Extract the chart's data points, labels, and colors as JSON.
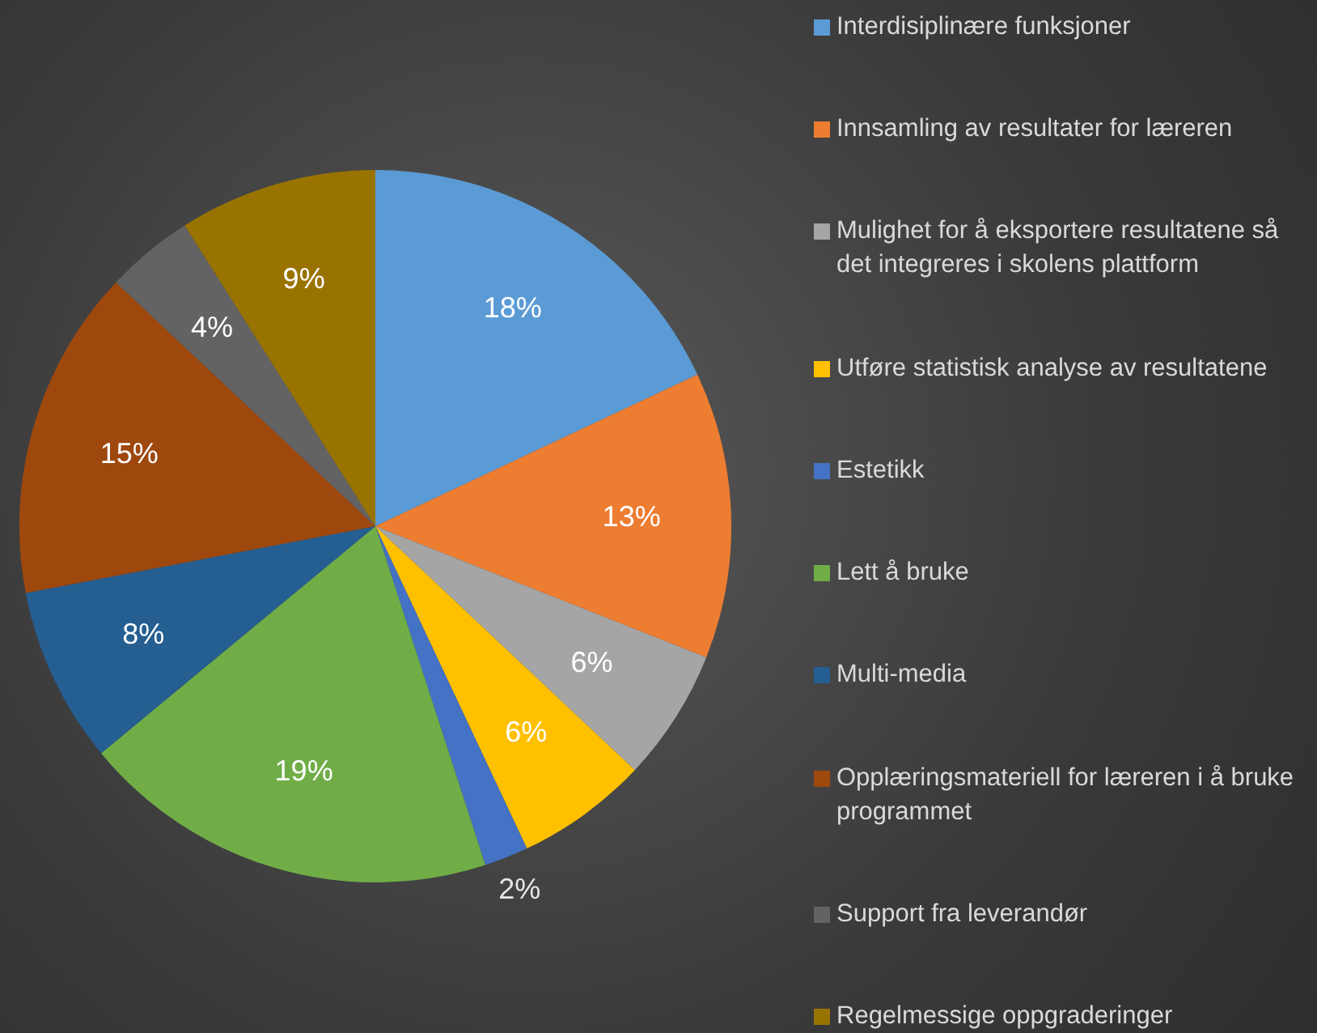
{
  "chart_data": {
    "type": "pie",
    "categories": [
      "Interdisiplinære funksjoner",
      "Innsamling av resultater for læreren",
      "Mulighet for å eksportere resultatene så det integreres i skolens plattform",
      "Utføre statistisk analyse av resultatene",
      "Estetikk",
      "Lett å bruke",
      "Multi-media",
      "Opplæringsmateriell for læreren i å bruke programmet",
      "Support fra leverandør",
      "Regelmessige oppgraderinger"
    ],
    "values": [
      18,
      13,
      6,
      6,
      2,
      19,
      8,
      15,
      4,
      9
    ],
    "colors": [
      "#5b9bd5",
      "#ed7d31",
      "#a5a5a5",
      "#ffc000",
      "#4472c4",
      "#70ad47",
      "#255e91",
      "#9e480e",
      "#636363",
      "#997300"
    ],
    "value_labels": [
      "18%",
      "13%",
      "6%",
      "6%",
      "2%",
      "19%",
      "8%",
      "15%",
      "4%",
      "9%"
    ],
    "legend": "right"
  }
}
